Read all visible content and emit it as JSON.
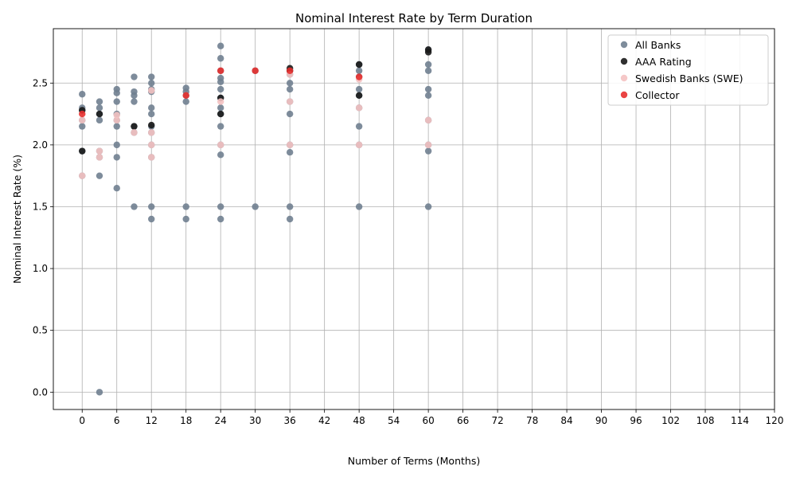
{
  "chart_data": {
    "type": "scatter",
    "title": "Nominal Interest Rate by Term Duration",
    "xlabel": "Number of Terms (Months)",
    "ylabel": "Nominal Interest Rate (%)",
    "xlim": [
      -5,
      120
    ],
    "ylim": [
      -0.14,
      2.94
    ],
    "x_ticks": [
      0,
      6,
      12,
      18,
      24,
      30,
      36,
      42,
      48,
      54,
      60,
      66,
      72,
      78,
      84,
      90,
      96,
      102,
      108,
      114,
      120
    ],
    "y_ticks": [
      0.0,
      0.5,
      1.0,
      1.5,
      2.0,
      2.5
    ],
    "y_tick_labels": [
      "0.0",
      "0.5",
      "1.0",
      "1.5",
      "2.0",
      "2.5"
    ],
    "grid": true,
    "legend_position": "top-right",
    "series": [
      {
        "name": "All Banks",
        "color": "#708090",
        "points": [
          [
            0,
            2.41
          ],
          [
            0,
            2.3
          ],
          [
            0,
            2.28
          ],
          [
            0,
            2.2
          ],
          [
            0,
            2.15
          ],
          [
            0,
            1.95
          ],
          [
            0,
            1.75
          ],
          [
            3,
            2.35
          ],
          [
            3,
            2.3
          ],
          [
            3,
            2.25
          ],
          [
            3,
            2.2
          ],
          [
            3,
            1.95
          ],
          [
            3,
            1.9
          ],
          [
            3,
            1.75
          ],
          [
            3,
            0.0
          ],
          [
            6,
            2.45
          ],
          [
            6,
            2.42
          ],
          [
            6,
            2.35
          ],
          [
            6,
            2.25
          ],
          [
            6,
            2.2
          ],
          [
            6,
            2.15
          ],
          [
            6,
            2.0
          ],
          [
            6,
            1.9
          ],
          [
            6,
            1.65
          ],
          [
            9,
            2.55
          ],
          [
            9,
            2.43
          ],
          [
            9,
            2.4
          ],
          [
            9,
            2.35
          ],
          [
            9,
            2.15
          ],
          [
            9,
            2.1
          ],
          [
            9,
            1.5
          ],
          [
            12,
            2.55
          ],
          [
            12,
            2.5
          ],
          [
            12,
            2.45
          ],
          [
            12,
            2.43
          ],
          [
            12,
            2.3
          ],
          [
            12,
            2.25
          ],
          [
            12,
            2.15
          ],
          [
            12,
            2.1
          ],
          [
            12,
            2.0
          ],
          [
            12,
            1.9
          ],
          [
            12,
            1.5
          ],
          [
            12,
            1.4
          ],
          [
            18,
            2.46
          ],
          [
            18,
            2.43
          ],
          [
            18,
            2.4
          ],
          [
            18,
            2.35
          ],
          [
            18,
            1.5
          ],
          [
            18,
            1.4
          ],
          [
            24,
            2.8
          ],
          [
            24,
            2.7
          ],
          [
            24,
            2.6
          ],
          [
            24,
            2.54
          ],
          [
            24,
            2.51
          ],
          [
            24,
            2.45
          ],
          [
            24,
            2.38
          ],
          [
            24,
            2.3
          ],
          [
            24,
            2.25
          ],
          [
            24,
            2.15
          ],
          [
            24,
            2.0
          ],
          [
            24,
            1.92
          ],
          [
            24,
            1.5
          ],
          [
            24,
            1.4
          ],
          [
            30,
            2.6
          ],
          [
            30,
            1.5
          ],
          [
            36,
            2.6
          ],
          [
            36,
            2.57
          ],
          [
            36,
            2.5
          ],
          [
            36,
            2.45
          ],
          [
            36,
            2.35
          ],
          [
            36,
            2.25
          ],
          [
            36,
            2.0
          ],
          [
            36,
            1.94
          ],
          [
            36,
            1.5
          ],
          [
            36,
            1.4
          ],
          [
            48,
            2.65
          ],
          [
            48,
            2.6
          ],
          [
            48,
            2.55
          ],
          [
            48,
            2.45
          ],
          [
            48,
            2.4
          ],
          [
            48,
            2.3
          ],
          [
            48,
            2.15
          ],
          [
            48,
            2.0
          ],
          [
            48,
            1.5
          ],
          [
            60,
            2.77
          ],
          [
            60,
            2.65
          ],
          [
            60,
            2.6
          ],
          [
            60,
            2.45
          ],
          [
            60,
            2.4
          ],
          [
            60,
            2.2
          ],
          [
            60,
            2.0
          ],
          [
            60,
            1.95
          ],
          [
            60,
            1.5
          ]
        ]
      },
      {
        "name": "AAA Rating",
        "color": "#1a1a1a",
        "points": [
          [
            0,
            2.28
          ],
          [
            0,
            1.95
          ],
          [
            3,
            2.25
          ],
          [
            9,
            2.15
          ],
          [
            12,
            2.16
          ],
          [
            24,
            2.38
          ],
          [
            24,
            2.25
          ],
          [
            36,
            2.62
          ],
          [
            36,
            2.6
          ],
          [
            48,
            2.65
          ],
          [
            48,
            2.4
          ],
          [
            60,
            2.77
          ],
          [
            60,
            2.75
          ]
        ]
      },
      {
        "name": "Swedish Banks (SWE)",
        "color": "#f4c2c2",
        "points": [
          [
            0,
            2.2
          ],
          [
            0,
            1.75
          ],
          [
            3,
            1.95
          ],
          [
            3,
            1.9
          ],
          [
            6,
            2.24
          ],
          [
            6,
            2.2
          ],
          [
            9,
            2.1
          ],
          [
            12,
            2.44
          ],
          [
            12,
            2.1
          ],
          [
            12,
            2.0
          ],
          [
            12,
            1.9
          ],
          [
            24,
            2.35
          ],
          [
            24,
            2.0
          ],
          [
            36,
            2.57
          ],
          [
            36,
            2.35
          ],
          [
            36,
            2.0
          ],
          [
            48,
            2.53
          ],
          [
            48,
            2.3
          ],
          [
            48,
            2.0
          ],
          [
            60,
            2.2
          ],
          [
            60,
            2.0
          ]
        ]
      },
      {
        "name": "Collector",
        "color": "#e8302f",
        "points": [
          [
            0,
            2.25
          ],
          [
            18,
            2.4
          ],
          [
            24,
            2.6
          ],
          [
            30,
            2.6
          ],
          [
            36,
            2.6
          ],
          [
            48,
            2.55
          ]
        ]
      }
    ]
  }
}
